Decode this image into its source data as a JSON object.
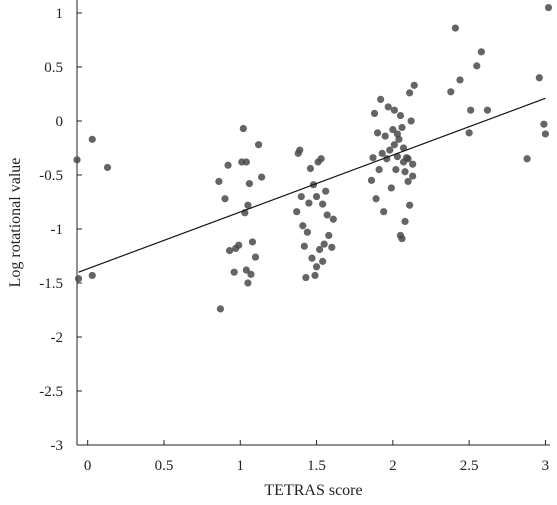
{
  "chart_data": {
    "type": "scatter",
    "title": "",
    "xlabel": "TETRAS score",
    "ylabel": "Log rotational value",
    "xlim": [
      -0.07,
      3.03
    ],
    "ylim": [
      -3,
      1.12
    ],
    "x_ticks": [
      0,
      0.5,
      1,
      1.5,
      2,
      2.5,
      3
    ],
    "x_tick_labels": [
      "0",
      "0.5",
      "1",
      "1.5",
      "2",
      "2.5",
      "3"
    ],
    "y_ticks": [
      -3,
      -2.5,
      -2,
      -1.5,
      -1,
      -0.5,
      0,
      0.5,
      1
    ],
    "y_tick_labels": [
      "-3",
      "-2.5",
      "-2",
      "-1.5",
      "-1",
      "-0.5",
      "0",
      "0.5",
      "1"
    ],
    "grid": false,
    "legend": "none",
    "point_color": "#4a4a4a",
    "line_color": "#111111",
    "points": [
      {
        "x": -0.06,
        "y": -1.46
      },
      {
        "x": -0.07,
        "y": -0.36
      },
      {
        "x": 0.03,
        "y": -0.17
      },
      {
        "x": 0.03,
        "y": -1.43
      },
      {
        "x": 0.13,
        "y": -0.43
      },
      {
        "x": 0.86,
        "y": -0.56
      },
      {
        "x": 0.87,
        "y": -1.74
      },
      {
        "x": 0.9,
        "y": -0.72
      },
      {
        "x": 0.92,
        "y": -0.41
      },
      {
        "x": 0.93,
        "y": -1.2
      },
      {
        "x": 0.96,
        "y": -1.4
      },
      {
        "x": 0.97,
        "y": -1.18
      },
      {
        "x": 0.99,
        "y": -1.15
      },
      {
        "x": 1.01,
        "y": -0.38
      },
      {
        "x": 1.02,
        "y": -0.07
      },
      {
        "x": 1.03,
        "y": -0.85
      },
      {
        "x": 1.04,
        "y": -0.38
      },
      {
        "x": 1.04,
        "y": -1.38
      },
      {
        "x": 1.05,
        "y": -1.5
      },
      {
        "x": 1.05,
        "y": -0.78
      },
      {
        "x": 1.06,
        "y": -0.58
      },
      {
        "x": 1.07,
        "y": -1.42
      },
      {
        "x": 1.08,
        "y": -1.12
      },
      {
        "x": 1.1,
        "y": -1.26
      },
      {
        "x": 1.12,
        "y": -0.22
      },
      {
        "x": 1.14,
        "y": -0.52
      },
      {
        "x": 1.37,
        "y": -0.84
      },
      {
        "x": 1.38,
        "y": -0.3
      },
      {
        "x": 1.39,
        "y": -0.27
      },
      {
        "x": 1.4,
        "y": -0.7
      },
      {
        "x": 1.41,
        "y": -0.97
      },
      {
        "x": 1.42,
        "y": -1.16
      },
      {
        "x": 1.43,
        "y": -1.45
      },
      {
        "x": 1.44,
        "y": -1.03
      },
      {
        "x": 1.45,
        "y": -0.76
      },
      {
        "x": 1.46,
        "y": -0.44
      },
      {
        "x": 1.47,
        "y": -1.27
      },
      {
        "x": 1.48,
        "y": -0.59
      },
      {
        "x": 1.49,
        "y": -1.43
      },
      {
        "x": 1.5,
        "y": -0.7
      },
      {
        "x": 1.5,
        "y": -1.35
      },
      {
        "x": 1.51,
        "y": -0.38
      },
      {
        "x": 1.52,
        "y": -1.19
      },
      {
        "x": 1.53,
        "y": -0.35
      },
      {
        "x": 1.54,
        "y": -0.77
      },
      {
        "x": 1.54,
        "y": -1.3
      },
      {
        "x": 1.55,
        "y": -1.14
      },
      {
        "x": 1.56,
        "y": -0.65
      },
      {
        "x": 1.57,
        "y": -0.87
      },
      {
        "x": 1.58,
        "y": -1.06
      },
      {
        "x": 1.6,
        "y": -1.17
      },
      {
        "x": 1.61,
        "y": -0.91
      },
      {
        "x": 1.86,
        "y": -0.55
      },
      {
        "x": 1.87,
        "y": -0.34
      },
      {
        "x": 1.88,
        "y": 0.07
      },
      {
        "x": 1.89,
        "y": -0.72
      },
      {
        "x": 1.9,
        "y": -0.11
      },
      {
        "x": 1.91,
        "y": -0.45
      },
      {
        "x": 1.92,
        "y": 0.2
      },
      {
        "x": 1.93,
        "y": -0.3
      },
      {
        "x": 1.94,
        "y": -0.84
      },
      {
        "x": 1.95,
        "y": -0.14
      },
      {
        "x": 1.96,
        "y": -0.35
      },
      {
        "x": 1.97,
        "y": 0.13
      },
      {
        "x": 1.98,
        "y": -0.27
      },
      {
        "x": 1.99,
        "y": -0.62
      },
      {
        "x": 2.0,
        "y": -0.08
      },
      {
        "x": 2.01,
        "y": 0.1
      },
      {
        "x": 2.01,
        "y": -0.22
      },
      {
        "x": 2.02,
        "y": -0.45
      },
      {
        "x": 2.03,
        "y": -0.12
      },
      {
        "x": 2.03,
        "y": -0.33
      },
      {
        "x": 2.04,
        "y": -0.17
      },
      {
        "x": 2.05,
        "y": -1.06
      },
      {
        "x": 2.05,
        "y": 0.05
      },
      {
        "x": 2.06,
        "y": -1.09
      },
      {
        "x": 2.06,
        "y": -0.06
      },
      {
        "x": 2.07,
        "y": -0.25
      },
      {
        "x": 2.07,
        "y": -0.38
      },
      {
        "x": 2.08,
        "y": -0.93
      },
      {
        "x": 2.08,
        "y": -0.47
      },
      {
        "x": 2.09,
        "y": -0.34
      },
      {
        "x": 2.1,
        "y": -0.56
      },
      {
        "x": 2.1,
        "y": -0.35
      },
      {
        "x": 2.11,
        "y": 0.26
      },
      {
        "x": 2.11,
        "y": -0.78
      },
      {
        "x": 2.12,
        "y": 0.0
      },
      {
        "x": 2.13,
        "y": -0.4
      },
      {
        "x": 2.13,
        "y": -0.51
      },
      {
        "x": 2.14,
        "y": 0.33
      },
      {
        "x": 2.38,
        "y": 0.27
      },
      {
        "x": 2.41,
        "y": 0.86
      },
      {
        "x": 2.44,
        "y": 0.38
      },
      {
        "x": 2.5,
        "y": -0.11
      },
      {
        "x": 2.51,
        "y": 0.1
      },
      {
        "x": 2.55,
        "y": 0.51
      },
      {
        "x": 2.58,
        "y": 0.64
      },
      {
        "x": 2.62,
        "y": 0.1
      },
      {
        "x": 2.88,
        "y": -0.35
      },
      {
        "x": 2.96,
        "y": 0.4
      },
      {
        "x": 2.99,
        "y": -0.03
      },
      {
        "x": 3.0,
        "y": -0.12
      },
      {
        "x": 3.02,
        "y": 1.05
      }
    ],
    "regression_line": {
      "x": [
        -0.06,
        3.0
      ],
      "y": [
        -1.4,
        0.21
      ]
    }
  }
}
